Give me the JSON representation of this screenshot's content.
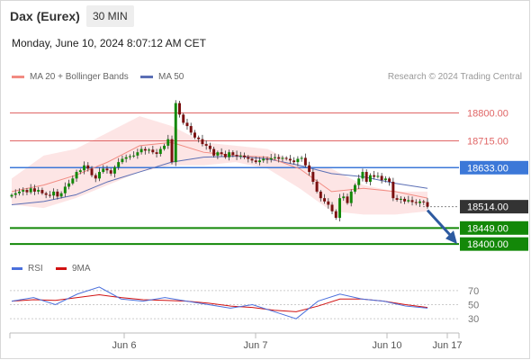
{
  "header": {
    "instrument": "Dax (Eurex)",
    "interval": "30 MIN",
    "datetime": "Monday, June 10, 2024 8:07:12 AM CET"
  },
  "legend": {
    "ma20": "MA 20 + Bollinger Bands",
    "ma50": "MA 50",
    "credit": "Research © 2024 Trading Central"
  },
  "rsi_legend": {
    "rsi": "RSI",
    "ma": "9MA"
  },
  "colors": {
    "resistance": "#e06666",
    "pivot": "#3c78d8",
    "support": "#138808",
    "current": "#333333",
    "ma20": "#f28b82",
    "ma50": "#5b6fb5",
    "bb_fill": "#fde0e0",
    "candle_up": "#138808",
    "candle_down": "#7a1010",
    "rsi": "#4a6fdc",
    "rsi_ma": "#d11111",
    "arrow": "#2d5aa0"
  },
  "chart_data": {
    "type": "candlestick",
    "ylim": [
      18362,
      18870
    ],
    "x_ticks": [
      "Jun 6",
      "Jun 7",
      "Jun 10",
      "Jun 17"
    ],
    "levels": [
      {
        "value": 18800.0,
        "label": "18800.00",
        "kind": "resistance"
      },
      {
        "value": 18715.0,
        "label": "18715.00",
        "kind": "resistance"
      },
      {
        "value": 18633.0,
        "label": "18633.00",
        "kind": "pivot"
      },
      {
        "value": 18514.0,
        "label": "18514.00",
        "kind": "current"
      },
      {
        "value": 18449.0,
        "label": "18449.00",
        "kind": "support"
      },
      {
        "value": 18400.0,
        "label": "18400.00",
        "kind": "support"
      }
    ],
    "closes": [
      18550,
      18555,
      18560,
      18565,
      18558,
      18570,
      18560,
      18565,
      18555,
      18550,
      18548,
      18560,
      18545,
      18555,
      18575,
      18585,
      18600,
      18620,
      18625,
      18640,
      18630,
      18610,
      18600,
      18620,
      18630,
      18625,
      18615,
      18635,
      18650,
      18660,
      18665,
      18668,
      18670,
      18680,
      18690,
      18685,
      18688,
      18680,
      18675,
      18690,
      18700,
      18720,
      18650,
      18830,
      18795,
      18770,
      18760,
      18740,
      18725,
      18720,
      18705,
      18700,
      18690,
      18670,
      18680,
      18675,
      18665,
      18680,
      18672,
      18668,
      18670,
      18665,
      18660,
      18655,
      18650,
      18655,
      18660,
      18658,
      18662,
      18665,
      18660,
      18663,
      18660,
      18655,
      18650,
      18660,
      18663,
      18640,
      18620,
      18590,
      18560,
      18540,
      18530,
      18520,
      18500,
      18480,
      18540,
      18545,
      18525,
      18560,
      18580,
      18600,
      18620,
      18590,
      18610,
      18605,
      18608,
      18595,
      18600,
      18590,
      18540,
      18535,
      18538,
      18530,
      18534,
      18528,
      18525,
      18530,
      18528,
      18514
    ],
    "bb_upper_ma20": [
      18600,
      18670,
      18690,
      18740,
      18790,
      18760,
      18710,
      18700,
      18690,
      18640,
      18630,
      18580,
      18560,
      18560
    ],
    "ma20": [
      18560,
      18580,
      18610,
      18650,
      18700,
      18710,
      18680,
      18670,
      18665,
      18630,
      18560,
      18570,
      18560,
      18540
    ],
    "bb_lower_ma20": [
      18520,
      18510,
      18540,
      18580,
      18620,
      18640,
      18640,
      18650,
      18630,
      18570,
      18500,
      18490,
      18490,
      18500
    ],
    "ma50": [
      18520,
      18530,
      18550,
      18590,
      18620,
      18650,
      18665,
      18668,
      18660,
      18640,
      18615,
      18605,
      18585,
      18570
    ],
    "rsi_ylim": [
      20,
      80
    ],
    "rsi_ticks": [
      70,
      50,
      30
    ],
    "rsi": [
      55,
      60,
      50,
      65,
      75,
      58,
      55,
      60,
      55,
      50,
      45,
      50,
      40,
      30,
      55,
      65,
      58,
      55,
      48,
      45
    ],
    "rsi_ma": [
      55,
      57,
      56,
      60,
      64,
      60,
      57,
      56,
      55,
      52,
      48,
      46,
      42,
      40,
      48,
      58,
      58,
      55,
      50,
      46
    ]
  }
}
